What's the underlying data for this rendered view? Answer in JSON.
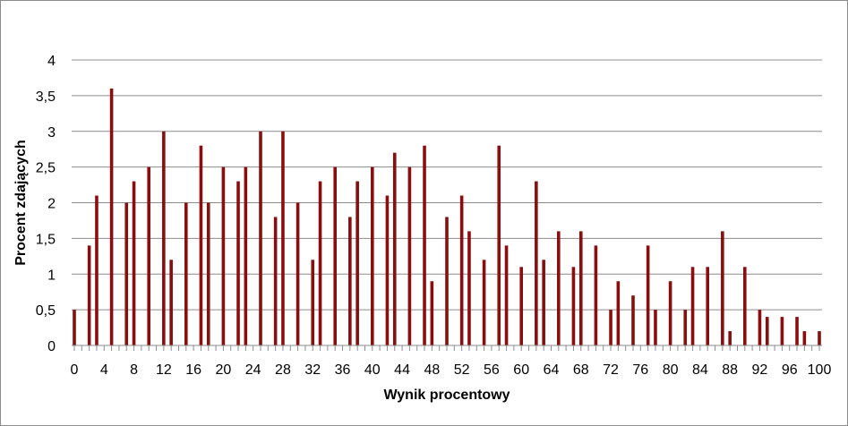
{
  "chart_data": {
    "type": "bar",
    "title": "",
    "xlabel": "Wynik procentowy",
    "ylabel": "Procent zdających",
    "ylim": [
      0,
      4
    ],
    "xlim": [
      0,
      100
    ],
    "y_ticks": [
      "0",
      "0,5",
      "1",
      "1,5",
      "2",
      "2,5",
      "3",
      "3,5",
      "4"
    ],
    "y_tick_values": [
      0,
      0.5,
      1,
      1.5,
      2,
      2.5,
      3,
      3.5,
      4
    ],
    "x_ticks": [
      "0",
      "4",
      "8",
      "12",
      "16",
      "20",
      "24",
      "28",
      "32",
      "36",
      "40",
      "44",
      "48",
      "52",
      "56",
      "60",
      "64",
      "68",
      "72",
      "76",
      "80",
      "84",
      "88",
      "92",
      "96",
      "100"
    ],
    "x_tick_values": [
      0,
      4,
      8,
      12,
      16,
      20,
      24,
      28,
      32,
      36,
      40,
      44,
      48,
      52,
      56,
      60,
      64,
      68,
      72,
      76,
      80,
      84,
      88,
      92,
      96,
      100
    ],
    "grid": "horizontal",
    "legend": "none",
    "bar_color": "#8b0e0e",
    "x": [
      0,
      2,
      3,
      5,
      7,
      8,
      10,
      12,
      13,
      15,
      17,
      18,
      20,
      22,
      23,
      25,
      27,
      28,
      30,
      32,
      33,
      35,
      37,
      38,
      40,
      42,
      43,
      45,
      47,
      48,
      50,
      52,
      53,
      55,
      57,
      58,
      60,
      62,
      63,
      65,
      67,
      68,
      70,
      72,
      73,
      75,
      77,
      78,
      80,
      82,
      83,
      85,
      87,
      88,
      90,
      92,
      93,
      95,
      97,
      98,
      100
    ],
    "values": [
      0.5,
      1.4,
      2.1,
      3.6,
      2.0,
      2.3,
      2.5,
      3.0,
      1.2,
      2.0,
      2.8,
      2.0,
      2.5,
      2.3,
      2.5,
      3.0,
      1.8,
      3.0,
      2.0,
      1.2,
      2.3,
      2.5,
      1.8,
      2.3,
      2.5,
      2.1,
      2.7,
      2.5,
      2.8,
      0.9,
      1.8,
      2.1,
      1.6,
      1.2,
      2.8,
      1.4,
      1.1,
      2.3,
      1.2,
      1.6,
      1.1,
      1.6,
      1.4,
      0.5,
      0.9,
      0.7,
      1.4,
      0.5,
      0.9,
      0.5,
      1.1,
      1.1,
      1.6,
      0.2,
      1.1,
      0.5,
      0.4,
      0.4,
      0.4,
      0.2,
      0.2
    ]
  }
}
